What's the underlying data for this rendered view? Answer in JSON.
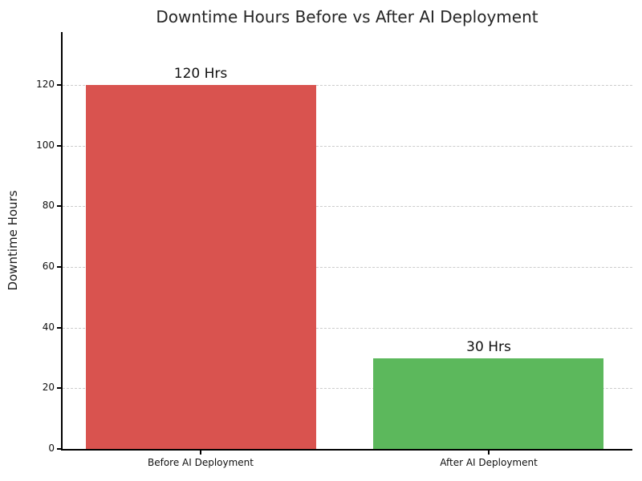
{
  "chart_data": {
    "type": "bar",
    "title": "Downtime Hours Before vs After AI Deployment",
    "xlabel": "",
    "ylabel": "Downtime Hours",
    "categories": [
      "Before AI Deployment",
      "After AI Deployment"
    ],
    "values": [
      120,
      30
    ],
    "bar_labels": [
      "120 Hrs",
      "30 Hrs"
    ],
    "bar_colors": [
      "#d9534f",
      "#5cb85c"
    ],
    "yticks": [
      0,
      20,
      40,
      60,
      80,
      100,
      120
    ],
    "ylim": [
      0,
      137.5
    ],
    "grid": "horizontal-dashed",
    "grid_color": "#cccccc",
    "spine_color": "#000000",
    "text_color": "#111111",
    "title_color": "#262626",
    "legend": "none"
  }
}
